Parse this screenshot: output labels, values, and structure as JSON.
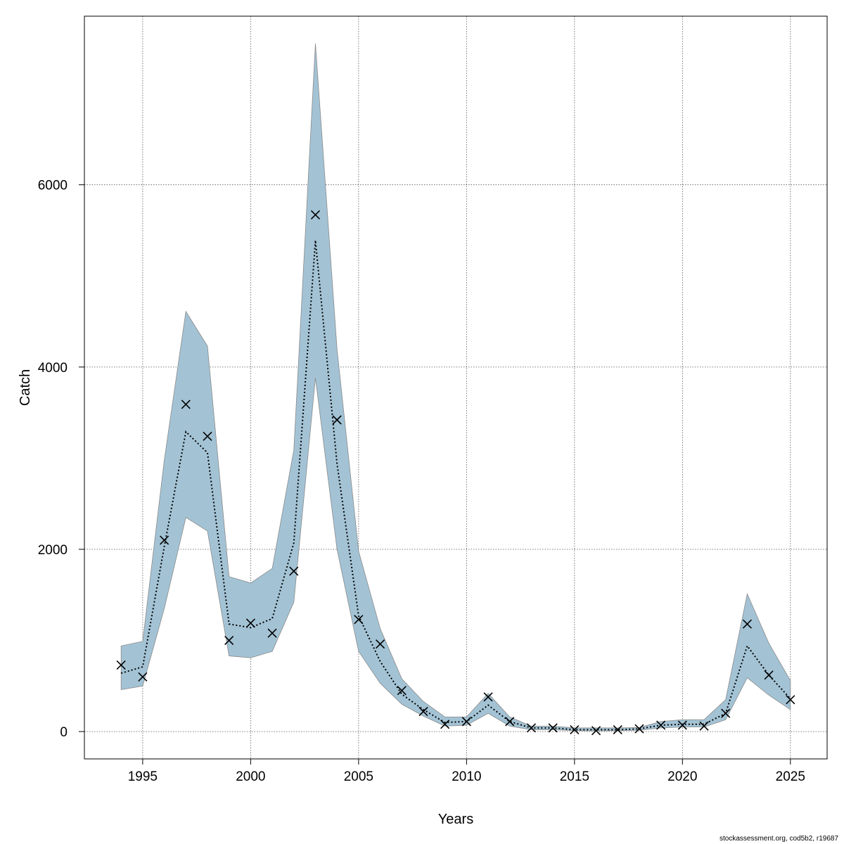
{
  "chart_data": {
    "type": "line",
    "xlabel": "Years",
    "ylabel": "Catch",
    "xlim": [
      1992.3,
      2026.7
    ],
    "ylim": [
      -300,
      7850
    ],
    "x_ticks": [
      1995,
      2000,
      2005,
      2010,
      2015,
      2020,
      2025
    ],
    "y_ticks": [
      0,
      2000,
      4000,
      6000
    ],
    "grid": true,
    "colors": {
      "band": "#a3c3d5",
      "band_edge": "#8a8a8a",
      "line": "#000000",
      "marker": "#000000",
      "grid": "#555555"
    },
    "series": [
      {
        "kind": "interval",
        "x": [
          1994,
          1995,
          1996,
          1997,
          1998,
          1999,
          2000,
          2001,
          2002,
          2003,
          2004,
          2005,
          2006,
          2007,
          2008,
          2009,
          2010,
          2011,
          2012,
          2013,
          2014,
          2015,
          2016,
          2017,
          2018,
          2019,
          2020,
          2021,
          2022,
          2023,
          2024,
          2025
        ],
        "lower": [
          460,
          500,
          1350,
          2350,
          2200,
          830,
          810,
          880,
          1420,
          3880,
          2000,
          880,
          530,
          300,
          170,
          60,
          70,
          200,
          60,
          20,
          20,
          10,
          8,
          10,
          15,
          40,
          50,
          50,
          130,
          590,
          400,
          240
        ],
        "upper": [
          940,
          990,
          2980,
          4610,
          4230,
          1700,
          1630,
          1790,
          3090,
          7550,
          4200,
          1980,
          1130,
          580,
          330,
          160,
          160,
          420,
          160,
          60,
          60,
          40,
          40,
          40,
          45,
          110,
          130,
          130,
          350,
          1510,
          970,
          560
        ]
      },
      {
        "kind": "estimate",
        "x": [
          1994,
          1995,
          1996,
          1997,
          1998,
          1999,
          2000,
          2001,
          2002,
          2003,
          2004,
          2005,
          2006,
          2007,
          2008,
          2009,
          2010,
          2011,
          2012,
          2013,
          2014,
          2015,
          2016,
          2017,
          2018,
          2019,
          2020,
          2021,
          2022,
          2023,
          2024,
          2025
        ],
        "values": [
          640,
          710,
          2030,
          3290,
          3060,
          1180,
          1140,
          1240,
          2070,
          5390,
          2940,
          1270,
          770,
          410,
          240,
          100,
          110,
          290,
          110,
          40,
          40,
          20,
          20,
          20,
          30,
          70,
          80,
          80,
          200,
          940,
          620,
          360
        ]
      },
      {
        "kind": "observed",
        "x": [
          1994,
          1995,
          1996,
          1997,
          1998,
          1999,
          2000,
          2001,
          2002,
          2003,
          2004,
          2005,
          2006,
          2007,
          2008,
          2009,
          2010,
          2011,
          2012,
          2013,
          2014,
          2015,
          2016,
          2017,
          2018,
          2019,
          2020,
          2021,
          2022,
          2023,
          2024,
          2025
        ],
        "values": [
          730,
          600,
          2100,
          3590,
          3240,
          1000,
          1190,
          1080,
          1760,
          5670,
          3420,
          1230,
          960,
          450,
          220,
          80,
          110,
          380,
          110,
          40,
          40,
          20,
          10,
          20,
          30,
          70,
          70,
          60,
          200,
          1180,
          620,
          350
        ]
      }
    ]
  },
  "footer_text": "stockassessment.org, cod5b2, r19687"
}
